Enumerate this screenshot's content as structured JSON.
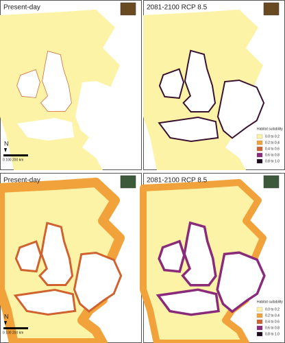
{
  "panels": [
    {
      "title": "Present-day",
      "north": "N",
      "scale_bar": "0  100  200 km"
    },
    {
      "title": "2081-2100 RCP 8.5",
      "legend": {
        "title": "Habitat suitability",
        "items": [
          {
            "label": "0.0 to 0.2",
            "color": "#fdf3a7"
          },
          {
            "label": "0.2 to 0.4",
            "color": "#f2a23a"
          },
          {
            "label": "0.4 to 0.6",
            "color": "#d0622f"
          },
          {
            "label": "0.6 to 0.8",
            "color": "#8a2a7a"
          },
          {
            "label": "0.8 to 1.0",
            "color": "#1a0a1a"
          }
        ]
      }
    },
    {
      "title": "Present-day",
      "north": "N",
      "scale_bar": "0  100  200 km"
    },
    {
      "title": "2081-2100 RCP 8.5",
      "legend": {
        "title": "Habitat suitability",
        "items": [
          {
            "label": "0.0 to 0.2",
            "color": "#fdf3a7"
          },
          {
            "label": "0.2 to 0.4",
            "color": "#f2a23a"
          },
          {
            "label": "0.4 to 0.6",
            "color": "#d0622f"
          },
          {
            "label": "0.6 to 0.8",
            "color": "#8a2a7a"
          },
          {
            "label": "0.8 to 1.0",
            "color": "#1a0a1a"
          }
        ]
      }
    }
  ]
}
